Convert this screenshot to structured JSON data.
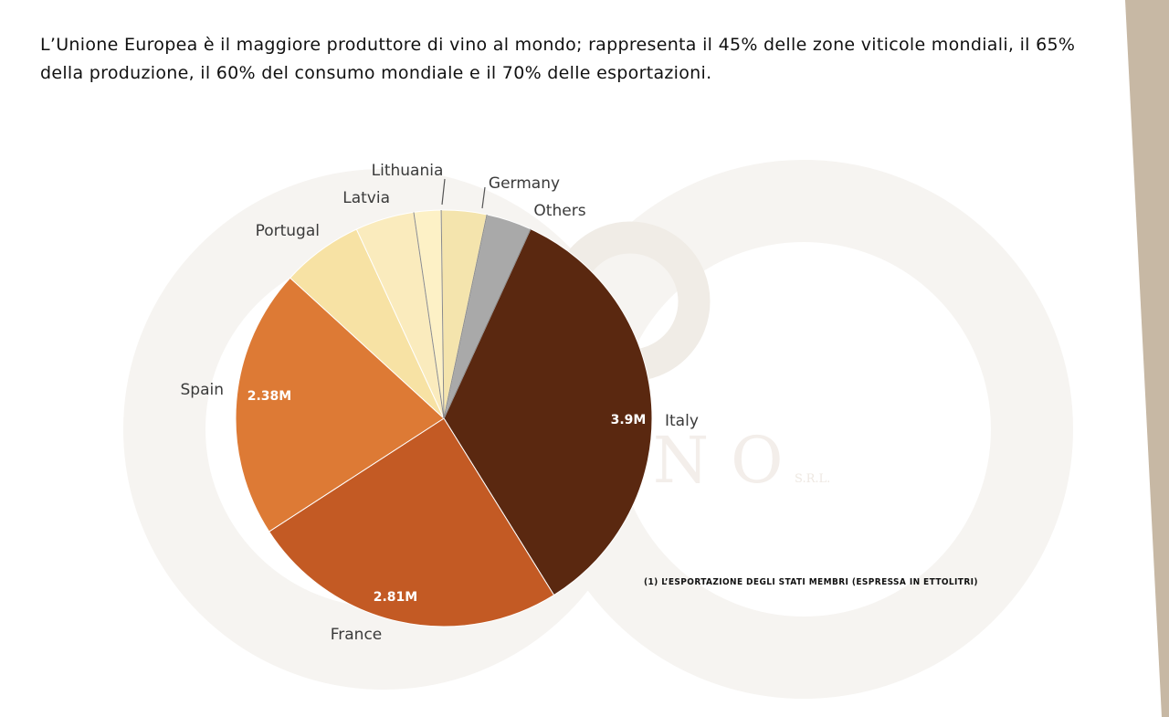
{
  "intro_text": "L’Unione Europea è il maggiore produttore di vino al mondo; rappresenta il 45% delle zone viticole mondiali, il 65% della produzione, il 60% del consumo mondiale e il 70% delle esportazioni.",
  "watermark": {
    "brand": "DELFINO",
    "suffix": "S.R.L."
  },
  "footnote": "(1) L’ESPORTAZIONE DEGLI STATI MEMBRI (ESPRESSA IN ETTOLITRI)",
  "colors": {
    "side_strip": "#c7b8a4",
    "Italy": "#5a2810",
    "France": "#c35a24",
    "Spain": "#dd7a35",
    "Portugal": "#f7e2a4",
    "Latvia": "#faebbd",
    "Lithuania": "#fdf1c6",
    "Germany": "#f4e4ad",
    "Others": "#a9a9a9"
  },
  "chart_data": {
    "type": "pie",
    "title": "",
    "slices": [
      {
        "label": "Italy",
        "value": 3.9,
        "value_label": "3.9M"
      },
      {
        "label": "France",
        "value": 2.81,
        "value_label": "2.81M"
      },
      {
        "label": "Spain",
        "value": 2.38,
        "value_label": "2.38M"
      },
      {
        "label": "Portugal",
        "value": 0.72,
        "value_label": ""
      },
      {
        "label": "Latvia",
        "value": 0.52,
        "value_label": ""
      },
      {
        "label": "Lithuania",
        "value": 0.24,
        "value_label": ""
      },
      {
        "label": "Germany",
        "value": 0.4,
        "value_label": ""
      },
      {
        "label": "Others",
        "value": 0.4,
        "value_label": ""
      }
    ]
  }
}
